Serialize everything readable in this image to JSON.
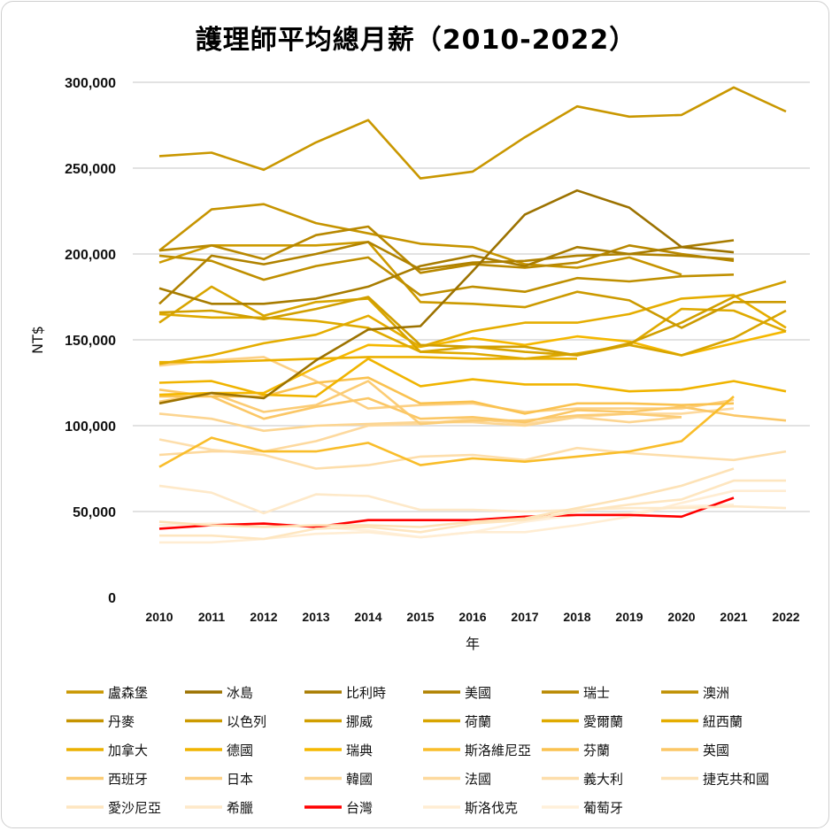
{
  "chart_data": {
    "type": "line",
    "title": "護理師平均總月薪（2010-2022）",
    "xlabel": "年",
    "ylabel": "NT$",
    "ylim": [
      0,
      300000
    ],
    "yticks": [
      0,
      50000,
      100000,
      150000,
      200000,
      250000,
      300000
    ],
    "ytick_labels": [
      "0",
      "50,000",
      "100,000",
      "150,000",
      "200,000",
      "250,000",
      "300,000"
    ],
    "x": [
      "2010",
      "2011",
      "2012",
      "2013",
      "2014",
      "2015",
      "2016",
      "2017",
      "2018",
      "2019",
      "2020",
      "2021",
      "2022"
    ],
    "grid": true,
    "legend_position": "bottom",
    "series": [
      {
        "name": "盧森堡",
        "color": "#c99700",
        "values": [
          257000,
          259000,
          249000,
          265000,
          278000,
          244000,
          248000,
          268000,
          286000,
          280000,
          281000,
          297000,
          283000
        ]
      },
      {
        "name": "冰島",
        "color": "#9c7200",
        "values": [
          113000,
          119000,
          116000,
          138000,
          156000,
          158000,
          190000,
          223000,
          237000,
          227000,
          204000,
          201000,
          null
        ]
      },
      {
        "name": "比利時",
        "color": "#a87c00",
        "values": [
          180000,
          171000,
          171000,
          174000,
          181000,
          193000,
          199000,
          193000,
          204000,
          200000,
          204000,
          208000,
          null
        ]
      },
      {
        "name": "美國",
        "color": "#b08200",
        "values": [
          171000,
          199000,
          194000,
          200000,
          207000,
          191000,
          195000,
          196000,
          199000,
          200000,
          199000,
          197000,
          null
        ]
      },
      {
        "name": "瑞士",
        "color": "#b88800",
        "values": [
          202000,
          205000,
          197000,
          211000,
          216000,
          189000,
          194000,
          192000,
          195000,
          205000,
          200000,
          196000,
          null
        ]
      },
      {
        "name": "澳洲",
        "color": "#bf8f00",
        "values": [
          199000,
          196000,
          185000,
          193000,
          198000,
          176000,
          181000,
          178000,
          186000,
          184000,
          187000,
          188000,
          null
        ]
      },
      {
        "name": "丹麥",
        "color": "#c69400",
        "values": [
          202000,
          226000,
          229000,
          218000,
          212000,
          206000,
          204000,
          194000,
          192000,
          198000,
          188000,
          null,
          null
        ]
      },
      {
        "name": "以色列",
        "color": "#cc9a00",
        "values": [
          195000,
          205000,
          205000,
          205000,
          207000,
          172000,
          171000,
          169000,
          178000,
          173000,
          157000,
          172000,
          172000
        ]
      },
      {
        "name": "挪威",
        "color": "#d19f00",
        "values": [
          166000,
          167000,
          162000,
          168000,
          175000,
          147000,
          146000,
          146000,
          141000,
          148000,
          160000,
          175000,
          184000
        ]
      },
      {
        "name": "荷蘭",
        "color": "#d8a500",
        "values": [
          160000,
          181000,
          164000,
          172000,
          174000,
          143000,
          146000,
          143000,
          141000,
          147000,
          141000,
          151000,
          167000
        ]
      },
      {
        "name": "愛爾蘭",
        "color": "#dfaa00",
        "values": [
          165000,
          163000,
          163000,
          161000,
          157000,
          143000,
          142000,
          139000,
          142000,
          147000,
          168000,
          167000,
          155000
        ]
      },
      {
        "name": "紐西蘭",
        "color": "#e5ad00",
        "values": [
          136000,
          141000,
          148000,
          153000,
          164000,
          146000,
          155000,
          160000,
          160000,
          165000,
          174000,
          176000,
          157000
        ]
      },
      {
        "name": "加拿大",
        "color": "#ebb000",
        "values": [
          137000,
          137000,
          138000,
          139000,
          140000,
          140000,
          139000,
          139000,
          139000,
          null,
          null,
          null,
          null
        ]
      },
      {
        "name": "德國",
        "color": "#f0b400",
        "values": [
          125000,
          126000,
          118000,
          117000,
          139000,
          123000,
          127000,
          124000,
          124000,
          120000,
          121000,
          126000,
          120000
        ]
      },
      {
        "name": "瑞典",
        "color": "#f5b800",
        "values": [
          118000,
          119000,
          119000,
          134000,
          147000,
          146000,
          151000,
          147000,
          152000,
          149000,
          141000,
          148000,
          155000
        ]
      },
      {
        "name": "斯洛維尼亞",
        "color": "#f9bd2a",
        "values": [
          76000,
          93000,
          85000,
          85000,
          90000,
          77000,
          81000,
          79000,
          82000,
          85000,
          91000,
          117000,
          null
        ]
      },
      {
        "name": "芬蘭",
        "color": "#fac250",
        "values": [
          117000,
          117000,
          117000,
          125000,
          128000,
          113000,
          114000,
          107000,
          113000,
          113000,
          112000,
          113000,
          null
        ]
      },
      {
        "name": "英國",
        "color": "#fbc766",
        "values": [
          121000,
          117000,
          104000,
          111000,
          116000,
          104000,
          105000,
          102000,
          109000,
          108000,
          111000,
          106000,
          103000
        ]
      },
      {
        "name": "西班牙",
        "color": "#fbcc75",
        "values": [
          114000,
          119000,
          108000,
          112000,
          126000,
          101000,
          103000,
          103000,
          106000,
          107000,
          105000,
          null,
          null
        ]
      },
      {
        "name": "日本",
        "color": "#fcd084",
        "values": [
          135000,
          138000,
          140000,
          126000,
          110000,
          112000,
          113000,
          108000,
          110000,
          110000,
          110000,
          115000,
          null
        ]
      },
      {
        "name": "韓國",
        "color": "#fcd591",
        "values": [
          107000,
          104000,
          97000,
          100000,
          101000,
          102000,
          102000,
          100000,
          105000,
          102000,
          105000,
          null,
          null
        ]
      },
      {
        "name": "法國",
        "color": "#fdd99e",
        "values": [
          83000,
          85000,
          85000,
          91000,
          100000,
          101000,
          104000,
          101000,
          105000,
          107000,
          107000,
          110000,
          null
        ]
      },
      {
        "name": "義大利",
        "color": "#fddeab",
        "values": [
          92000,
          86000,
          83000,
          75000,
          77000,
          82000,
          83000,
          80000,
          87000,
          84000,
          82000,
          80000,
          85000
        ]
      },
      {
        "name": "捷克共和國",
        "color": "#fde2b6",
        "values": [
          44000,
          42000,
          41000,
          42000,
          42000,
          41000,
          44000,
          46000,
          52000,
          58000,
          65000,
          75000,
          null
        ]
      },
      {
        "name": "愛沙尼亞",
        "color": "#fee6c0",
        "values": [
          36000,
          36000,
          34000,
          40000,
          41000,
          38000,
          43000,
          45000,
          50000,
          54000,
          57000,
          68000,
          68000
        ]
      },
      {
        "name": "希臘",
        "color": "#fee9c9",
        "values": [
          65000,
          61000,
          49000,
          60000,
          59000,
          51000,
          51000,
          50000,
          51000,
          52000,
          52000,
          53000,
          52000
        ]
      },
      {
        "name": "台灣",
        "color": "#ff0000",
        "values": [
          40000,
          42000,
          43000,
          41000,
          45000,
          45000,
          45000,
          47000,
          48000,
          48000,
          47000,
          58000,
          null
        ]
      },
      {
        "name": "斯洛伐克",
        "color": "#ffedd3",
        "values": [
          32000,
          32000,
          34000,
          37000,
          38000,
          35000,
          38000,
          38000,
          42000,
          47000,
          55000,
          62000,
          62000
        ]
      },
      {
        "name": "葡萄牙",
        "color": "#fff0da",
        "values": [
          42000,
          43000,
          42000,
          41000,
          39000,
          35000,
          38000,
          44000,
          48000,
          49000,
          53000,
          54000,
          null
        ]
      }
    ]
  }
}
